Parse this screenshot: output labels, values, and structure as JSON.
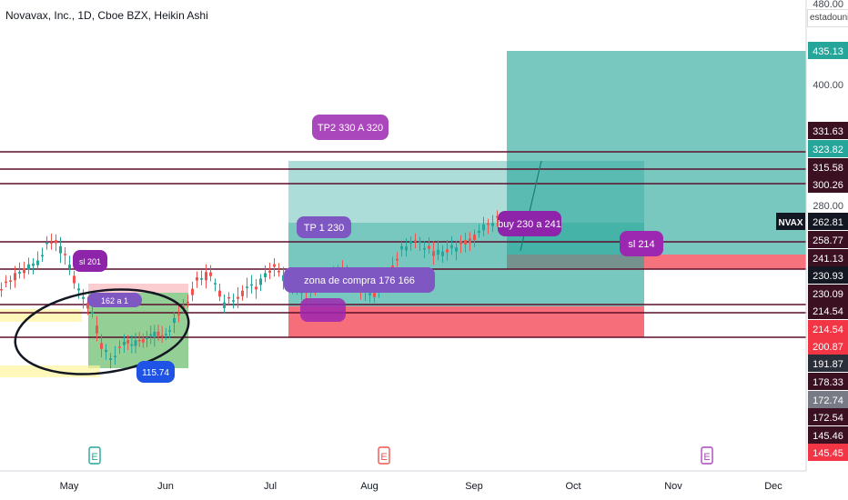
{
  "header": {
    "title": "Novavax, Inc., 1D, Cboe BZX, Heikin Ashi",
    "top_badge": "estadounic"
  },
  "chart_data": {
    "type": "candlestick",
    "symbol": "NVAX",
    "x_labels": [
      "May",
      "Jun",
      "Jul",
      "Aug",
      "Sep",
      "Oct",
      "Nov",
      "Dec"
    ],
    "y_ticks": [
      "480.00",
      "400.00",
      "280.00"
    ],
    "price_tags": [
      {
        "value": "435.13",
        "bg": "#26a69a",
        "fg": "#ffffff"
      },
      {
        "value": "331.63",
        "bg": "#3b1020",
        "fg": "#ffffff"
      },
      {
        "value": "323.82",
        "bg": "#26a69a",
        "fg": "#ffffff"
      },
      {
        "value": "315.58",
        "bg": "#3b1020",
        "fg": "#ffffff"
      },
      {
        "value": "300.26",
        "bg": "#3b1020",
        "fg": "#ffffff"
      },
      {
        "value": "262.81",
        "bg": "#131722",
        "fg": "#ffffff",
        "label": "NVAX"
      },
      {
        "value": "258.77",
        "bg": "#3b1020",
        "fg": "#ffffff"
      },
      {
        "value": "241.13",
        "bg": "#3b1020",
        "fg": "#ffffff"
      },
      {
        "value": "230.93",
        "bg": "#131722",
        "fg": "#ffffff"
      },
      {
        "value": "230.09",
        "bg": "#3b1020",
        "fg": "#ffffff"
      },
      {
        "value": "214.54",
        "bg": "#3b1020",
        "fg": "#ffffff"
      },
      {
        "value": "214.54",
        "bg": "#f23645",
        "fg": "#ffffff"
      },
      {
        "value": "200.87",
        "bg": "#f23645",
        "fg": "#ffffff"
      },
      {
        "value": "191.87",
        "bg": "#2a2e39",
        "fg": "#ffffff"
      },
      {
        "value": "178.33",
        "bg": "#3b1020",
        "fg": "#ffffff"
      },
      {
        "value": "172.74",
        "bg": "#787b86",
        "fg": "#ffffff"
      },
      {
        "value": "172.54",
        "bg": "#3b1020",
        "fg": "#ffffff"
      },
      {
        "value": "145.46",
        "bg": "#3b1020",
        "fg": "#ffffff"
      },
      {
        "value": "145.45",
        "bg": "#f23645",
        "fg": "#ffffff"
      }
    ],
    "annotations": [
      "TP2 330 A 320",
      "TP 1  230",
      "sl 201",
      "162 a 1",
      "zona de compra 176 166",
      "sl 214",
      "buy 230 a 241",
      "115.74"
    ],
    "events": [
      "E",
      "E",
      "E"
    ],
    "colors": {
      "up": "#26a69a",
      "down": "#ef5350",
      "zone_green": "#26a69a",
      "zone_red": "#f23645",
      "label_purple": "#9c27b0",
      "line_maroon": "#5d0f2b"
    }
  }
}
